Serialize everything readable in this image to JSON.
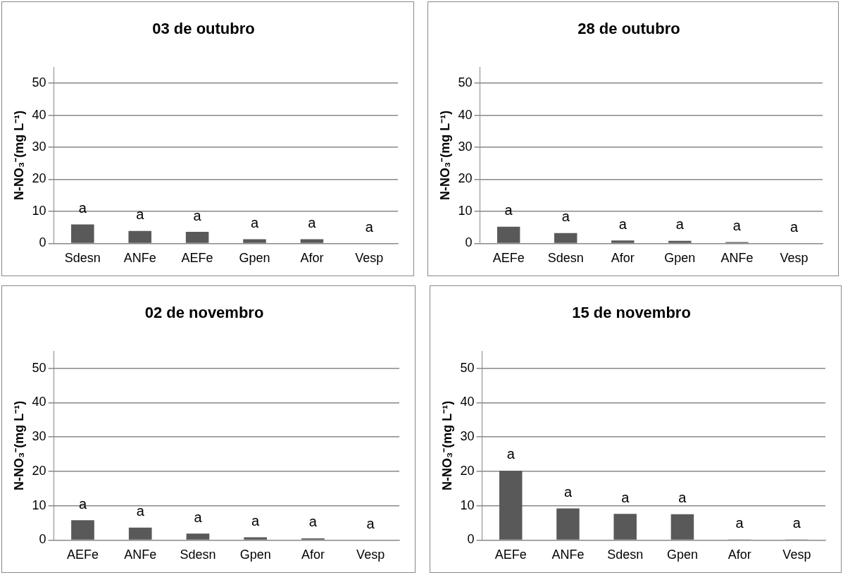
{
  "chart_data": [
    {
      "type": "bar",
      "title": "03 de outubro",
      "ylabel": "N-NO₃⁻(mg L⁻¹)",
      "categories": [
        "Sdesn",
        "ANFe",
        "AEFe",
        "Gpen",
        "Afor",
        "Vesp"
      ],
      "values": [
        5.9,
        3.9,
        3.6,
        1.3,
        1.3,
        0
      ],
      "value_labels": [
        "a",
        "a",
        "a",
        "a",
        "a",
        "a"
      ],
      "color": "#595959",
      "ylim": [
        0,
        55
      ],
      "yticks": [
        0,
        10,
        20,
        30,
        40,
        50
      ],
      "grid": "y",
      "legend": false
    },
    {
      "type": "bar",
      "title": "28 de outubro",
      "ylabel": "N-NO₃⁻(mg L⁻¹)",
      "categories": [
        "AEFe",
        "Sdesn",
        "Afor",
        "Gpen",
        "ANFe",
        "Vesp"
      ],
      "values": [
        5.2,
        3.2,
        0.9,
        0.8,
        0.4,
        0
      ],
      "value_labels": [
        "a",
        "a",
        "a",
        "a",
        "a",
        "a"
      ],
      "color": "#595959",
      "ylim": [
        0,
        55
      ],
      "yticks": [
        0,
        10,
        20,
        30,
        40,
        50
      ],
      "grid": "y",
      "legend": false
    },
    {
      "type": "bar",
      "title": "02 de novembro",
      "ylabel": "N-NO₃⁻(mg L⁻¹)",
      "categories": [
        "AEFe",
        "ANFe",
        "Sdesn",
        "Gpen",
        "Afor",
        "Vesp"
      ],
      "values": [
        5.8,
        3.6,
        1.9,
        0.8,
        0.5,
        0
      ],
      "value_labels": [
        "a",
        "a",
        "a",
        "a",
        "a",
        "a"
      ],
      "color": "#595959",
      "ylim": [
        0,
        55
      ],
      "yticks": [
        0,
        10,
        20,
        30,
        40,
        50
      ],
      "grid": "y",
      "legend": false
    },
    {
      "type": "bar",
      "title": "15 de novembro",
      "ylabel": "N-NO₃⁻(mg L⁻¹)",
      "categories": [
        "AEFe",
        "ANFe",
        "Sdesn",
        "Gpen",
        "Afor",
        "Vesp"
      ],
      "values": [
        20.2,
        9.2,
        7.6,
        7.5,
        0.2,
        0.2
      ],
      "value_labels": [
        "a",
        "a",
        "a",
        "a",
        "a",
        "a"
      ],
      "color": "#595959",
      "ylim": [
        0,
        55
      ],
      "yticks": [
        0,
        10,
        20,
        30,
        40,
        50
      ],
      "grid": "y",
      "legend": false
    }
  ]
}
